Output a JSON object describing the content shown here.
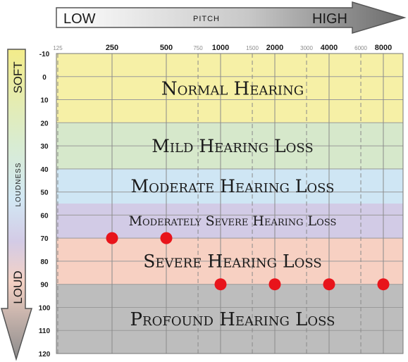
{
  "pitch_arrow": {
    "low": "LOW",
    "mid": "PITCH",
    "high": "HIGH"
  },
  "loudness_arrow": {
    "soft": "SOFT",
    "mid": "LOUDNESS",
    "loud": "LOUD"
  },
  "chart_data": {
    "type": "scatter",
    "x_axis": {
      "scale": "log",
      "major_ticks": [
        "250",
        "500",
        "1000",
        "2000",
        "4000",
        "8000"
      ],
      "minor_ticks": [
        "125",
        "750",
        "1500",
        "3000",
        "6000"
      ],
      "range": [
        125,
        8000
      ]
    },
    "y_axis": {
      "range": [
        -10,
        120
      ],
      "inverted": true,
      "ticks": [
        "-10",
        "0",
        "10",
        "20",
        "30",
        "40",
        "50",
        "60",
        "70",
        "80",
        "90",
        "100",
        "110",
        "120"
      ]
    },
    "grid": true,
    "bands": [
      {
        "label": "Normal Hearing",
        "from": -10,
        "to": 20,
        "color": "#f6f0a6"
      },
      {
        "label": "Mild Hearing Loss",
        "from": 20,
        "to": 40,
        "color": "#d6e8cb"
      },
      {
        "label": "Moderate Hearing Loss",
        "from": 40,
        "to": 55,
        "color": "#cfe6f4"
      },
      {
        "label": "Moderately Severe Hearing Loss",
        "from": 55,
        "to": 70,
        "color": "#d2cbe6"
      },
      {
        "label": "Severe Hearing Loss",
        "from": 70,
        "to": 90,
        "color": "#f7d0c2"
      },
      {
        "label": "Profound Hearing Loss",
        "from": 90,
        "to": 120,
        "color": "#bdbdbd"
      }
    ],
    "points": [
      {
        "x": 250,
        "y": 70
      },
      {
        "x": 500,
        "y": 70
      },
      {
        "x": 1000,
        "y": 90
      },
      {
        "x": 2000,
        "y": 90
      },
      {
        "x": 4000,
        "y": 90
      },
      {
        "x": 8000,
        "y": 90
      }
    ],
    "point_color": "#e8141b"
  }
}
